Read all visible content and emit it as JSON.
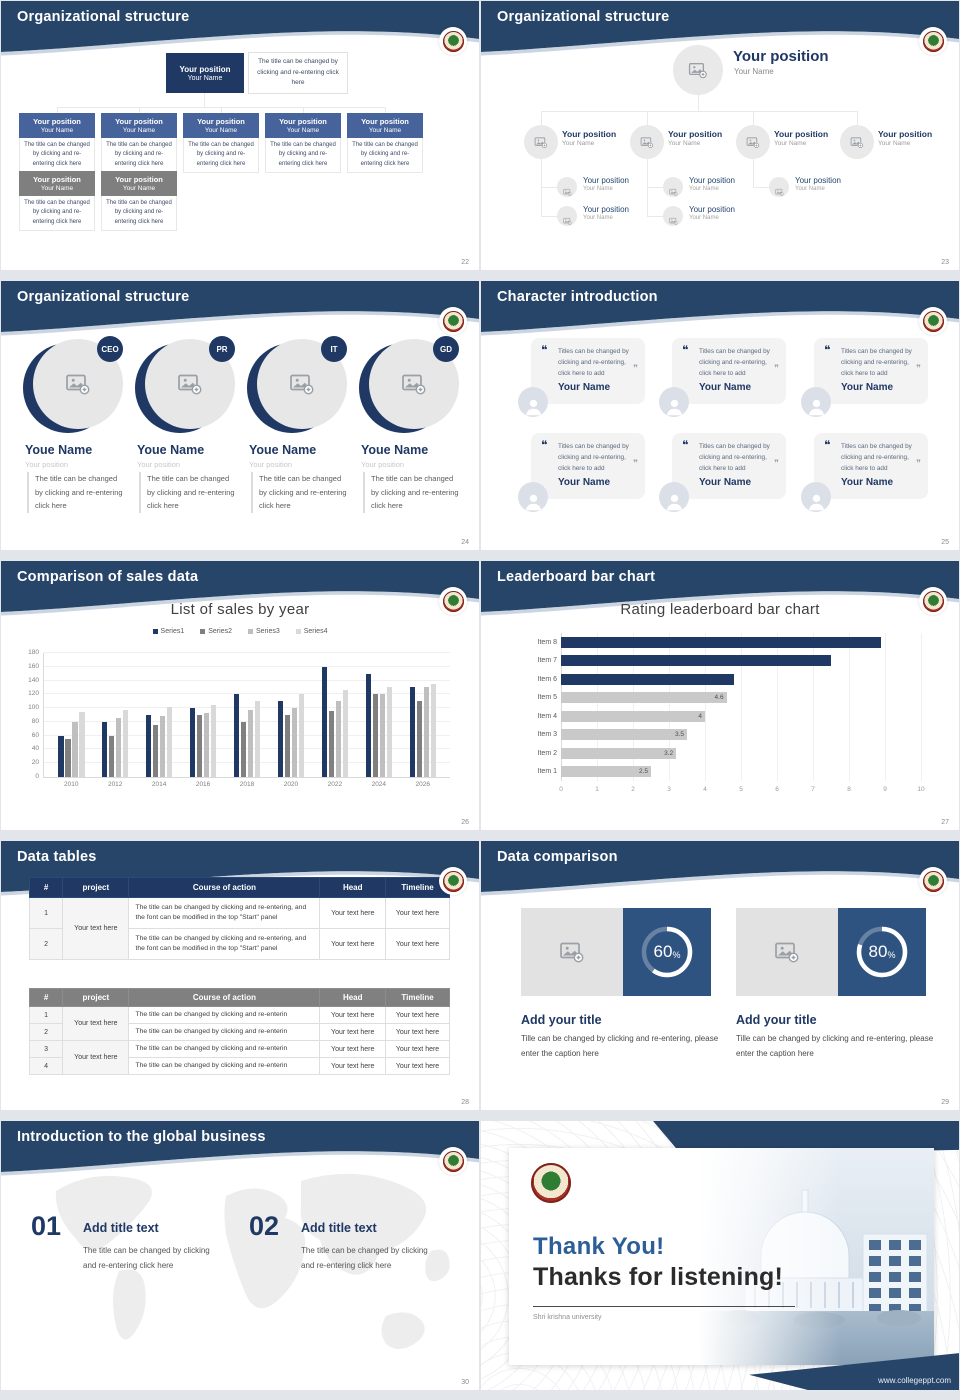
{
  "common": {
    "position": "Your position",
    "name": "Your Name",
    "caption": "The title can be changed by clicking and re-entering click here"
  },
  "slides": {
    "s22": {
      "title": "Organizational structure",
      "page": "22",
      "root_position": "Your position",
      "root_name": "Your Name",
      "root_note": "The title can be changed by clicking and re-entering click here",
      "box_caption": "The title can be changed by clicking and re-entering click here",
      "row1_count": 5,
      "row2_count": 2,
      "row1_color": "#47639b",
      "row2_color": "#7f7f7f"
    },
    "s23": {
      "title": "Organizational structure",
      "page": "23",
      "root_position": "Your position",
      "root_name": "Your Name",
      "level2_count": 4,
      "subs_per_column": [
        2,
        2,
        1,
        0
      ]
    },
    "s24": {
      "title": "Organizational structure",
      "page": "24",
      "badges": [
        "CEO",
        "PR",
        "IT",
        "GD"
      ],
      "name": "Youe Name",
      "position": "Your position",
      "caption": "The title can be changed by clicking and re-entering click here"
    },
    "s25": {
      "title": "Character introduction",
      "page": "25",
      "count": 6,
      "quote_open": "❝",
      "quote_close": "❞",
      "card_text": "Titles can be changed by clicking and re-entering, click here to add",
      "card_name": "Your Name"
    },
    "s26": {
      "title": "Comparison of sales data",
      "page": "26",
      "chart_data": {
        "type": "bar",
        "title": "List of sales by year",
        "categories": [
          "2010",
          "2012",
          "2014",
          "2016",
          "2018",
          "2020",
          "2022",
          "2024",
          "2026"
        ],
        "series": [
          {
            "name": "Series1",
            "color": "#1f3864",
            "values": [
              60,
              80,
              90,
              100,
              120,
              110,
              160,
              150,
              130
            ]
          },
          {
            "name": "Series2",
            "color": "#808080",
            "values": [
              55,
              60,
              75,
              90,
              80,
              90,
              96,
              120,
              110
            ]
          },
          {
            "name": "Series3",
            "color": "#bfbfbf",
            "values": [
              80,
              86,
              88,
              93,
              98,
              100,
              110,
              120,
              130
            ]
          },
          {
            "name": "Series4",
            "color": "#d9d9d9",
            "values": [
              95,
              98,
              102,
              105,
              110,
              120,
              126,
              130,
              135
            ]
          }
        ],
        "ylim": [
          0,
          180
        ],
        "ystep": 20,
        "grid": true,
        "legend_position": "top"
      }
    },
    "s27": {
      "title": "Leaderboard bar chart",
      "page": "27",
      "chart_data": {
        "type": "bar-horizontal",
        "title": "Rating leaderboard bar chart",
        "items": [
          {
            "label": "Item 8",
            "value": 8.9,
            "color": "#1f3864",
            "value_label": ""
          },
          {
            "label": "Item 7",
            "value": 7.5,
            "color": "#1f3864",
            "value_label": ""
          },
          {
            "label": "Item 6",
            "value": 4.8,
            "color": "#1f3864",
            "value_label": ""
          },
          {
            "label": "Item 5",
            "value": 4.6,
            "color": "#c9c9c9",
            "value_label": "4.6"
          },
          {
            "label": "Item 4",
            "value": 4.0,
            "color": "#c9c9c9",
            "value_label": "4"
          },
          {
            "label": "Item 3",
            "value": 3.5,
            "color": "#c9c9c9",
            "value_label": "3.5"
          },
          {
            "label": "Item 2",
            "value": 3.2,
            "color": "#c9c9c9",
            "value_label": "3.2"
          },
          {
            "label": "Item 1",
            "value": 2.5,
            "color": "#c9c9c9",
            "value_label": "2.5"
          }
        ],
        "xlim": [
          0,
          10
        ],
        "xstep": 1,
        "grid": true
      }
    },
    "s28": {
      "title": "Data tables",
      "page": "28",
      "headers": [
        "#",
        "project",
        "Course of action",
        "Head",
        "Timeline"
      ],
      "project_text": "Your text here",
      "cell_text": "Your text here",
      "long_course": "The title can be changed by clicking and re-entering, and the font can be modified in the top \"Start\" panel",
      "short_course": "The title can be changed by clicking and re-enterin",
      "t1_rows": [
        "1",
        "2"
      ],
      "t2_rows": [
        "1",
        "2",
        "3",
        "4"
      ]
    },
    "s29": {
      "title": "Data comparison",
      "page": "29",
      "percent_sign": "%",
      "panels": [
        {
          "percent": "60"
        },
        {
          "percent": "80"
        }
      ],
      "panel_title": "Add your title",
      "panel_caption": "Tille can be changed by clicking and re-entering, please enter the caption here"
    },
    "s30": {
      "title": "Introduction to the global business",
      "page": "30",
      "items": [
        {
          "num": "01",
          "title": "Add title text",
          "caption": "The title can be changed by clicking and re-entering click here"
        },
        {
          "num": "02",
          "title": "Add title text",
          "caption": "The title can be changed by clicking and re-entering click here"
        }
      ]
    },
    "s31": {
      "thank_main": "Thank You!",
      "thank_sub": "Thanks for listening!",
      "university": "Shri krishna university",
      "url": "www.collegeppt.com"
    }
  }
}
